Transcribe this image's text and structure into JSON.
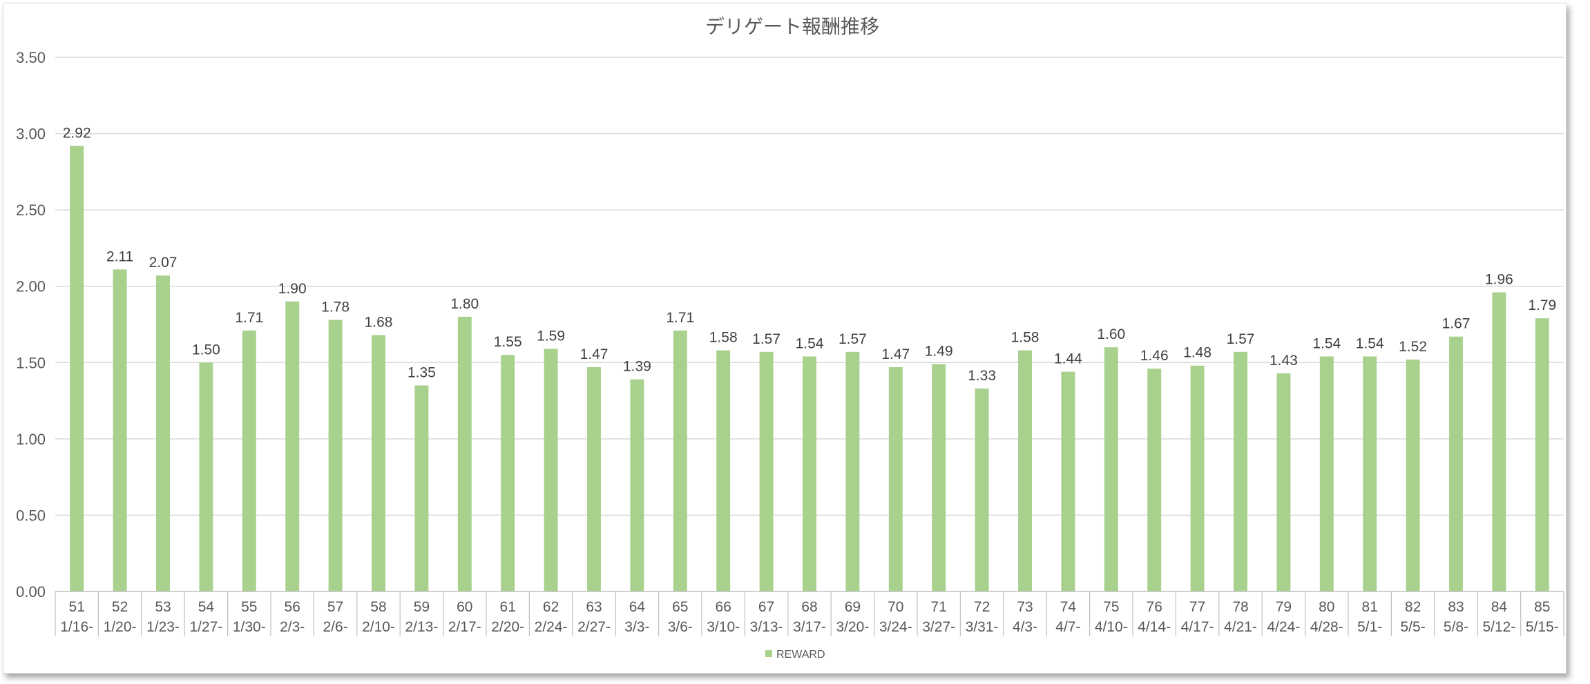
{
  "chart_data": {
    "type": "bar",
    "title": "デリゲート報酬推移",
    "xlabel": "",
    "ylabel": "",
    "ylim": [
      0,
      3.5
    ],
    "yticks": [
      "0.00",
      "0.50",
      "1.00",
      "1.50",
      "2.00",
      "2.50",
      "3.00",
      "3.50"
    ],
    "grid": true,
    "legend_position": "bottom",
    "color": "#a9d18e",
    "categories": [
      {
        "epoch": "51",
        "date": "1/16-"
      },
      {
        "epoch": "52",
        "date": "1/20-"
      },
      {
        "epoch": "53",
        "date": "1/23-"
      },
      {
        "epoch": "54",
        "date": "1/27-"
      },
      {
        "epoch": "55",
        "date": "1/30-"
      },
      {
        "epoch": "56",
        "date": "2/3-"
      },
      {
        "epoch": "57",
        "date": "2/6-"
      },
      {
        "epoch": "58",
        "date": "2/10-"
      },
      {
        "epoch": "59",
        "date": "2/13-"
      },
      {
        "epoch": "60",
        "date": "2/17-"
      },
      {
        "epoch": "61",
        "date": "2/20-"
      },
      {
        "epoch": "62",
        "date": "2/24-"
      },
      {
        "epoch": "63",
        "date": "2/27-"
      },
      {
        "epoch": "64",
        "date": "3/3-"
      },
      {
        "epoch": "65",
        "date": "3/6-"
      },
      {
        "epoch": "66",
        "date": "3/10-"
      },
      {
        "epoch": "67",
        "date": "3/13-"
      },
      {
        "epoch": "68",
        "date": "3/17-"
      },
      {
        "epoch": "69",
        "date": "3/20-"
      },
      {
        "epoch": "70",
        "date": "3/24-"
      },
      {
        "epoch": "71",
        "date": "3/27-"
      },
      {
        "epoch": "72",
        "date": "3/31-"
      },
      {
        "epoch": "73",
        "date": "4/3-"
      },
      {
        "epoch": "74",
        "date": "4/7-"
      },
      {
        "epoch": "75",
        "date": "4/10-"
      },
      {
        "epoch": "76",
        "date": "4/14-"
      },
      {
        "epoch": "77",
        "date": "4/17-"
      },
      {
        "epoch": "78",
        "date": "4/21-"
      },
      {
        "epoch": "79",
        "date": "4/24-"
      },
      {
        "epoch": "80",
        "date": "4/28-"
      },
      {
        "epoch": "81",
        "date": "5/1-"
      },
      {
        "epoch": "82",
        "date": "5/5-"
      },
      {
        "epoch": "83",
        "date": "5/8-"
      },
      {
        "epoch": "84",
        "date": "5/12-"
      },
      {
        "epoch": "85",
        "date": "5/15-"
      }
    ],
    "series": [
      {
        "name": "REWARD",
        "values": [
          2.92,
          2.11,
          2.07,
          1.5,
          1.71,
          1.9,
          1.78,
          1.68,
          1.35,
          1.8,
          1.55,
          1.59,
          1.47,
          1.39,
          1.71,
          1.58,
          1.57,
          1.54,
          1.57,
          1.47,
          1.49,
          1.33,
          1.58,
          1.44,
          1.6,
          1.46,
          1.48,
          1.57,
          1.43,
          1.54,
          1.54,
          1.52,
          1.67,
          1.96,
          1.79
        ],
        "labels": [
          "2.92",
          "2.11",
          "2.07",
          "1.50",
          "1.71",
          "1.90",
          "1.78",
          "1.68",
          "1.35",
          "1.80",
          "1.55",
          "1.59",
          "1.47",
          "1.39",
          "1.71",
          "1.58",
          "1.57",
          "1.54",
          "1.57",
          "1.47",
          "1.49",
          "1.33",
          "1.58",
          "1.44",
          "1.60",
          "1.46",
          "1.48",
          "1.57",
          "1.43",
          "1.54",
          "1.54",
          "1.52",
          "1.67",
          "1.96",
          "1.79"
        ]
      }
    ]
  }
}
